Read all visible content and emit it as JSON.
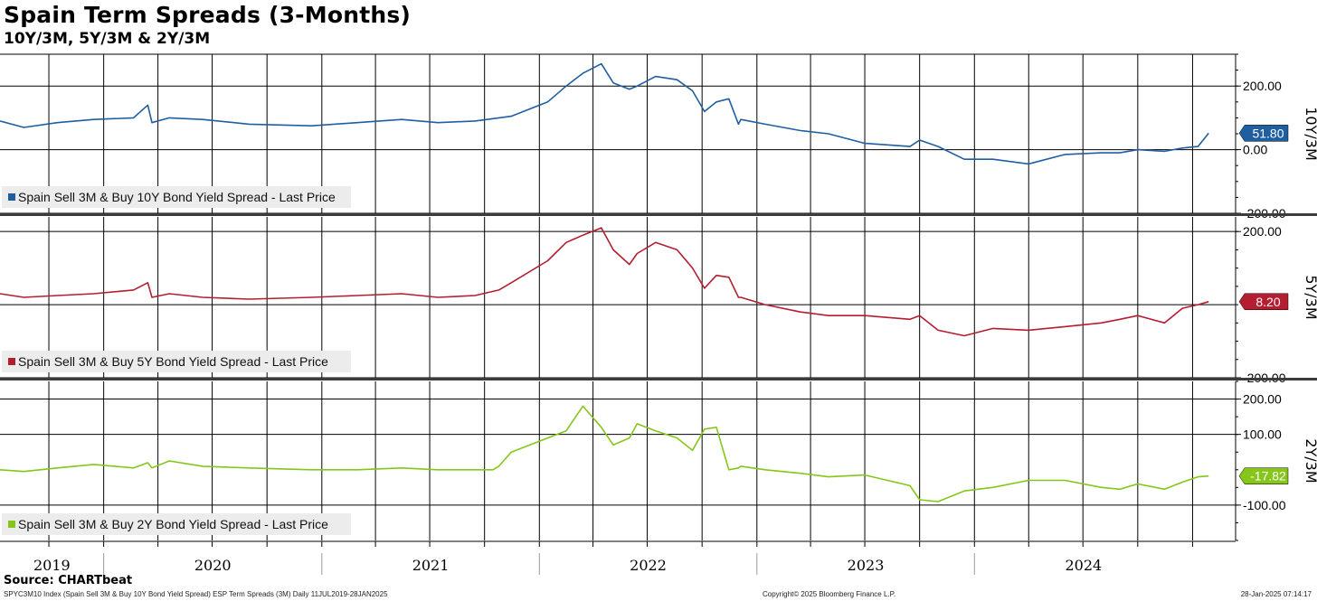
{
  "header": {
    "title": "Spain Term Spreads (3-Months)",
    "subtitle": "10Y/3M, 5Y/3M & 2Y/3M"
  },
  "footer": {
    "source": "Source: CHARTbeat",
    "left": "SPYC3M10 Index (Spain Sell 3M & Buy 10Y Bond Yield Spread) ESP Term Spreads (3M)  Daily 11JUL2019-28JAN2025",
    "mid": "Copyright© 2025 Bloomberg Finance L.P.",
    "right": "28-Jan-2025 07:14:17"
  },
  "chart_data": {
    "type": "line",
    "x_axis": {
      "start": "2019-07-11",
      "end": "2025-01-28",
      "year_labels": [
        "2019",
        "2020",
        "2021",
        "2022",
        "2023",
        "2024"
      ]
    },
    "panels": [
      {
        "id": "10y3m",
        "axis_label": "10Y/3M",
        "color": "#1f5fa0",
        "legend": "Spain Sell 3M & Buy 10Y Bond Yield Spread - Last Price",
        "last_value": 51.8,
        "last_label": "51.80",
        "ylim": [
          -200,
          300
        ],
        "yticks": [
          200,
          0,
          -200
        ],
        "ytick_labels": [
          "200.00",
          "0.00",
          "-200.00"
        ],
        "series": {
          "x": [
            "2019-07-11",
            "2019-08-20",
            "2019-10-15",
            "2019-12-15",
            "2020-02-20",
            "2020-03-15",
            "2020-03-22",
            "2020-04-20",
            "2020-06-15",
            "2020-09-01",
            "2020-12-15",
            "2021-03-01",
            "2021-05-15",
            "2021-07-15",
            "2021-09-15",
            "2021-10-25",
            "2021-11-15",
            "2022-01-15",
            "2022-02-15",
            "2022-03-15",
            "2022-04-15",
            "2022-05-05",
            "2022-06-01",
            "2022-06-14",
            "2022-07-15",
            "2022-08-20",
            "2022-09-15",
            "2022-10-05",
            "2022-10-25",
            "2022-11-15",
            "2022-12-01",
            "2022-12-05",
            "2023-01-15",
            "2023-03-15",
            "2023-05-01",
            "2023-07-01",
            "2023-09-15",
            "2023-10-01",
            "2023-11-01",
            "2023-12-15",
            "2024-02-01",
            "2024-04-01",
            "2024-06-01",
            "2024-08-01",
            "2024-09-01",
            "2024-10-01",
            "2024-11-15",
            "2024-12-15",
            "2025-01-10",
            "2025-01-28"
          ],
          "y": [
            90,
            70,
            85,
            95,
            100,
            140,
            85,
            100,
            95,
            80,
            75,
            85,
            95,
            85,
            90,
            100,
            105,
            150,
            200,
            240,
            270,
            210,
            190,
            200,
            230,
            220,
            185,
            120,
            150,
            160,
            80,
            95,
            80,
            60,
            50,
            20,
            10,
            30,
            10,
            -30,
            -30,
            -45,
            -15,
            -10,
            -10,
            0,
            -5,
            5,
            10,
            51.8
          ]
        }
      },
      {
        "id": "5y3m",
        "axis_label": "5Y/3M",
        "color": "#b41e30",
        "legend": "Spain Sell 3M & Buy 5Y Bond Yield Spread - Last Price",
        "last_value": 8.2,
        "last_label": "8.20",
        "ylim": [
          -200,
          240
        ],
        "yticks": [
          200,
          0,
          -200
        ],
        "ytick_labels": [
          "200.00",
          "",
          "-200.00"
        ],
        "series": {
          "x": [
            "2019-07-11",
            "2019-08-20",
            "2019-10-15",
            "2019-12-15",
            "2020-02-20",
            "2020-03-15",
            "2020-03-22",
            "2020-04-20",
            "2020-06-15",
            "2020-09-01",
            "2020-12-15",
            "2021-03-01",
            "2021-05-15",
            "2021-07-15",
            "2021-09-15",
            "2021-10-25",
            "2021-11-15",
            "2022-01-15",
            "2022-02-15",
            "2022-03-15",
            "2022-04-15",
            "2022-05-05",
            "2022-06-01",
            "2022-06-14",
            "2022-07-15",
            "2022-08-20",
            "2022-09-15",
            "2022-10-05",
            "2022-10-25",
            "2022-11-15",
            "2022-12-01",
            "2022-12-05",
            "2023-01-15",
            "2023-03-15",
            "2023-05-01",
            "2023-07-01",
            "2023-09-15",
            "2023-10-01",
            "2023-11-01",
            "2023-12-15",
            "2024-02-01",
            "2024-04-01",
            "2024-06-01",
            "2024-08-01",
            "2024-09-01",
            "2024-10-01",
            "2024-11-15",
            "2024-12-15",
            "2025-01-10",
            "2025-01-28"
          ],
          "y": [
            30,
            20,
            25,
            30,
            40,
            60,
            20,
            30,
            20,
            15,
            20,
            25,
            30,
            20,
            25,
            40,
            60,
            120,
            170,
            190,
            210,
            150,
            110,
            140,
            170,
            150,
            100,
            45,
            80,
            75,
            20,
            20,
            0,
            -20,
            -30,
            -30,
            -40,
            -30,
            -70,
            -85,
            -65,
            -70,
            -60,
            -50,
            -40,
            -30,
            -50,
            -10,
            0,
            8.2
          ]
        }
      },
      {
        "id": "2y3m",
        "axis_label": "2Y/3M",
        "color": "#86c61a",
        "legend": "Spain Sell 3M & Buy 2Y Bond Yield Spread - Last Price",
        "last_value": -17.82,
        "last_label": "-17.82",
        "ylim": [
          -200,
          250
        ],
        "yticks": [
          200,
          100,
          -100
        ],
        "ytick_labels": [
          "200.00",
          "100.00",
          "-100.00"
        ],
        "series": {
          "x": [
            "2019-07-11",
            "2019-08-20",
            "2019-10-15",
            "2019-12-15",
            "2020-02-20",
            "2020-03-15",
            "2020-03-22",
            "2020-04-20",
            "2020-06-15",
            "2020-09-01",
            "2020-12-15",
            "2021-03-01",
            "2021-05-15",
            "2021-07-15",
            "2021-09-15",
            "2021-10-15",
            "2021-10-25",
            "2021-11-15",
            "2022-01-15",
            "2022-02-15",
            "2022-03-15",
            "2022-04-15",
            "2022-05-05",
            "2022-06-01",
            "2022-06-14",
            "2022-07-15",
            "2022-08-20",
            "2022-09-15",
            "2022-10-05",
            "2022-10-25",
            "2022-11-15",
            "2022-12-01",
            "2022-12-05",
            "2023-01-15",
            "2023-03-15",
            "2023-05-01",
            "2023-07-01",
            "2023-09-15",
            "2023-10-01",
            "2023-11-01",
            "2023-12-15",
            "2024-02-01",
            "2024-04-01",
            "2024-06-01",
            "2024-08-01",
            "2024-09-01",
            "2024-10-01",
            "2024-11-15",
            "2024-12-15",
            "2025-01-10",
            "2025-01-28"
          ],
          "y": [
            0,
            -5,
            5,
            15,
            5,
            20,
            5,
            25,
            10,
            5,
            0,
            0,
            5,
            0,
            0,
            0,
            10,
            50,
            90,
            110,
            180,
            120,
            70,
            90,
            130,
            110,
            90,
            55,
            115,
            120,
            0,
            5,
            10,
            0,
            -10,
            -20,
            -15,
            -45,
            -85,
            -90,
            -60,
            -50,
            -30,
            -30,
            -50,
            -55,
            -40,
            -55,
            -35,
            -20,
            -17.82
          ]
        }
      }
    ]
  }
}
